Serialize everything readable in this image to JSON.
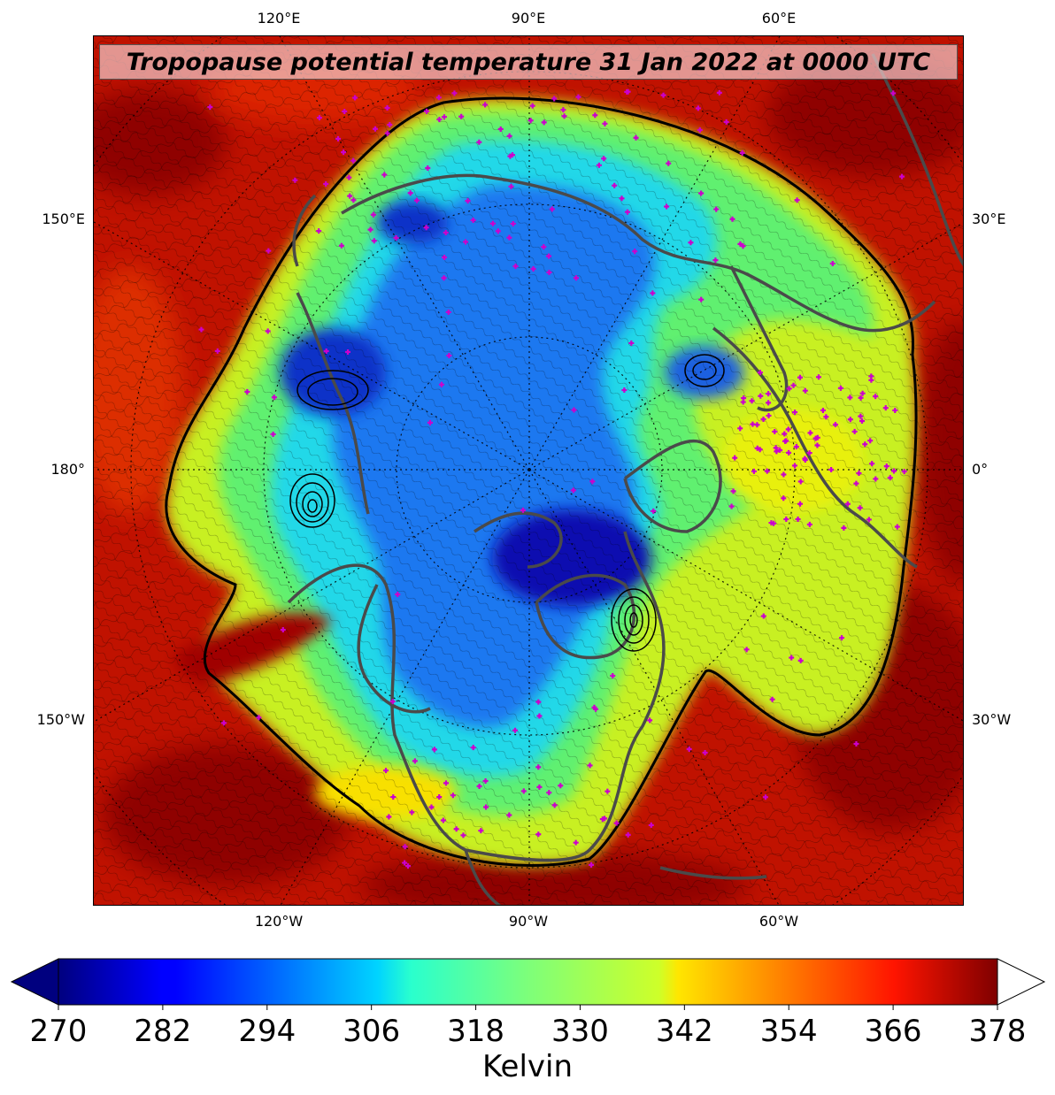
{
  "title": "Tropopause potential temperature 31 Jan 2022 at 0000 UTC",
  "map": {
    "projection": "north-polar-stereographic",
    "background_field": "tropopause potential temperature",
    "graticule_style": "dotted",
    "coastline_color": "#4a4a4a",
    "observation_marker_color": "#cc00cc",
    "observation_marker_shape": "plus",
    "longitude_labels_top": [
      "120°E",
      "90°E",
      "60°E"
    ],
    "longitude_labels_bottom": [
      "120°W",
      "90°W",
      "60°W"
    ],
    "longitude_labels_left": [
      "150°E",
      "180°",
      "150°W"
    ],
    "longitude_labels_right": [
      "30°E",
      "0°",
      "30°W"
    ]
  },
  "colorbar": {
    "colormap": "jet",
    "min": 270,
    "max": 378,
    "ticks": [
      "270",
      "282",
      "294",
      "306",
      "318",
      "330",
      "342",
      "354",
      "366",
      "378"
    ],
    "label": "Kelvin",
    "extend_low_color": "#00007f",
    "extend_high_color": "#ffffff"
  }
}
